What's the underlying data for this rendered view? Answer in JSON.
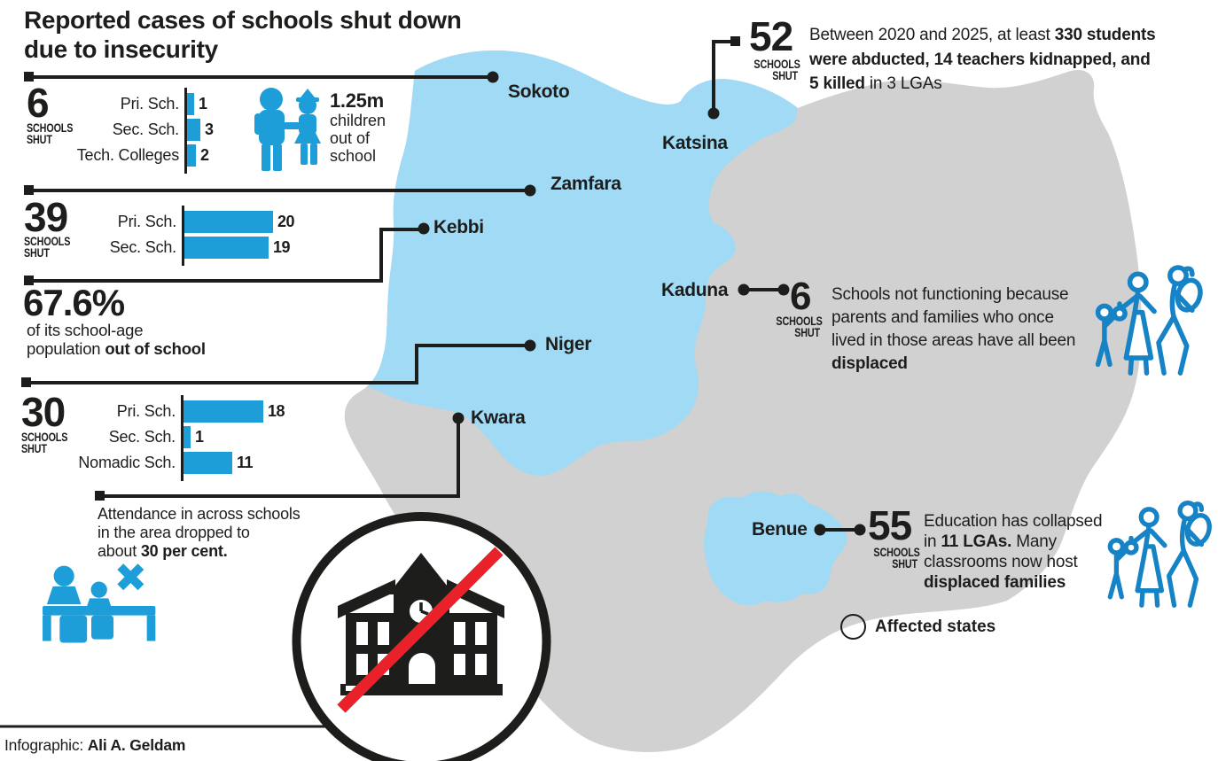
{
  "title": "Reported cases of schools shut down\ndue to insecurity",
  "credit": {
    "prefix": "Infographic: ",
    "author": "Ali A. Geldam"
  },
  "legend": {
    "label": "Affected states"
  },
  "colors": {
    "accent_blue": "#1e9ed9",
    "outline_icon_blue": "#1583c5",
    "map_affected": "#a0daf5",
    "legend_swatch": "#8fd3f3",
    "map_base": "#d1d1d1",
    "ink": "#1d1d1b",
    "slash_red": "#e8222a"
  },
  "map": {
    "states": [
      {
        "name": "Sokoto"
      },
      {
        "name": "Katsina"
      },
      {
        "name": "Zamfara"
      },
      {
        "name": "Kebbi"
      },
      {
        "name": "Kaduna"
      },
      {
        "name": "Niger"
      },
      {
        "name": "Kwara"
      },
      {
        "name": "Benue"
      }
    ]
  },
  "blocks": {
    "sokoto": {
      "count": "6",
      "unit": "SCHOOLS\nSHUT"
    },
    "zamfara": {
      "count": "39",
      "unit": "SCHOOLS\nSHUT"
    },
    "niger": {
      "count": "30",
      "unit": "SCHOOLS\nSHUT"
    },
    "kebbi": {
      "headline": "67.6%",
      "note": [
        {
          "t": "of its school-age\npopulation "
        },
        {
          "t": "out of school",
          "b": true
        }
      ]
    },
    "children_out": {
      "headline": "1.25m",
      "note": [
        {
          "t": "children\nout of\nschool"
        }
      ]
    },
    "kwara": {
      "note": [
        {
          "t": "Attendance in across schools\nin the area dropped to\nabout "
        },
        {
          "t": "30 per cent.",
          "b": true
        }
      ]
    },
    "katsina": {
      "count": "52",
      "unit": "SCHOOLS\nSHUT",
      "note": [
        {
          "t": "Between 2020 and 2025, at least "
        },
        {
          "t": "330 students\nwere abducted, 14 teachers kidnapped, and\n5 killed",
          "b": true
        },
        {
          "t": " in 3 LGAs"
        }
      ]
    },
    "kaduna": {
      "count": "6",
      "unit": "SCHOOLS\nSHUT",
      "note": [
        {
          "t": "Schools not functioning because\nparents and families who once\nlived in those areas have all been\n"
        },
        {
          "t": "displaced",
          "b": true
        }
      ]
    },
    "benue": {
      "count": "55",
      "unit": "SCHOOLS\nSHUT",
      "note": [
        {
          "t": "Education has collapsed\nin "
        },
        {
          "t": "11 LGAs.",
          "b": true
        },
        {
          "t": " Many\nclassrooms now host\n"
        },
        {
          "t": "displaced families",
          "b": true
        }
      ]
    }
  },
  "chart_data": [
    {
      "type": "bar",
      "group": "6 SCHOOLS SHUT (Sokoto)",
      "orientation": "horizontal",
      "categories": [
        "Pri. Sch.",
        "Sec. Sch.",
        "Tech. Colleges"
      ],
      "values": [
        1,
        3,
        2
      ]
    },
    {
      "type": "bar",
      "group": "39 SCHOOLS SHUT (Zamfara)",
      "orientation": "horizontal",
      "categories": [
        "Pri. Sch.",
        "Sec. Sch."
      ],
      "values": [
        20,
        19
      ]
    },
    {
      "type": "bar",
      "group": "30 SCHOOLS SHUT (Niger)",
      "orientation": "horizontal",
      "categories": [
        "Pri. Sch.",
        "Sec. Sch.",
        "Nomadic Sch."
      ],
      "values": [
        18,
        1,
        11
      ]
    }
  ]
}
